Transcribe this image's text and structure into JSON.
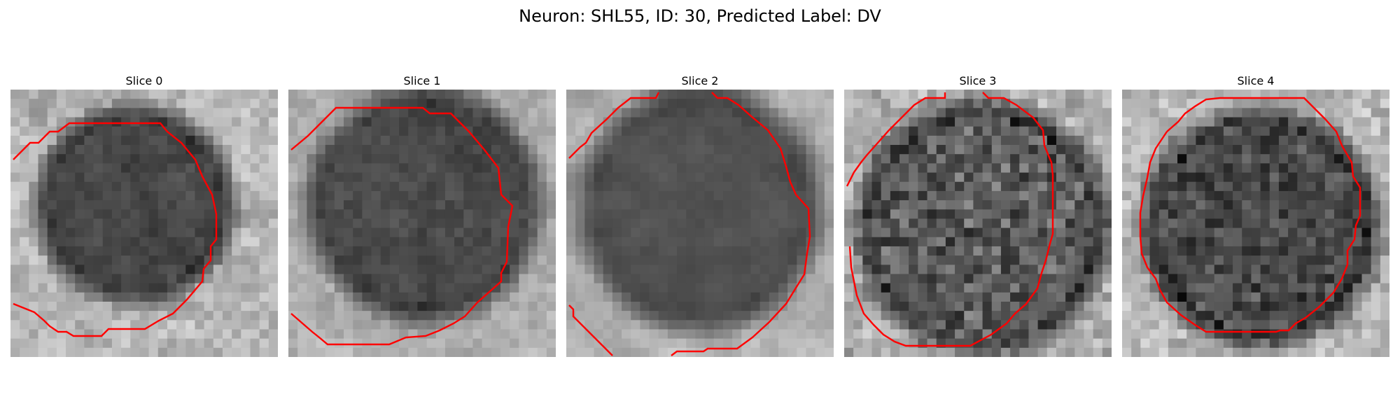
{
  "figure": {
    "title": "Neuron: SHL55, ID: 30, Predicted Label: DV"
  },
  "panels": [
    {
      "title": "Slice 0"
    },
    {
      "title": "Slice 1"
    },
    {
      "title": "Slice 2"
    },
    {
      "title": "Slice 3"
    },
    {
      "title": "Slice 4"
    }
  ],
  "colors": {
    "contour": "#ff0000",
    "background": "#ffffff"
  }
}
